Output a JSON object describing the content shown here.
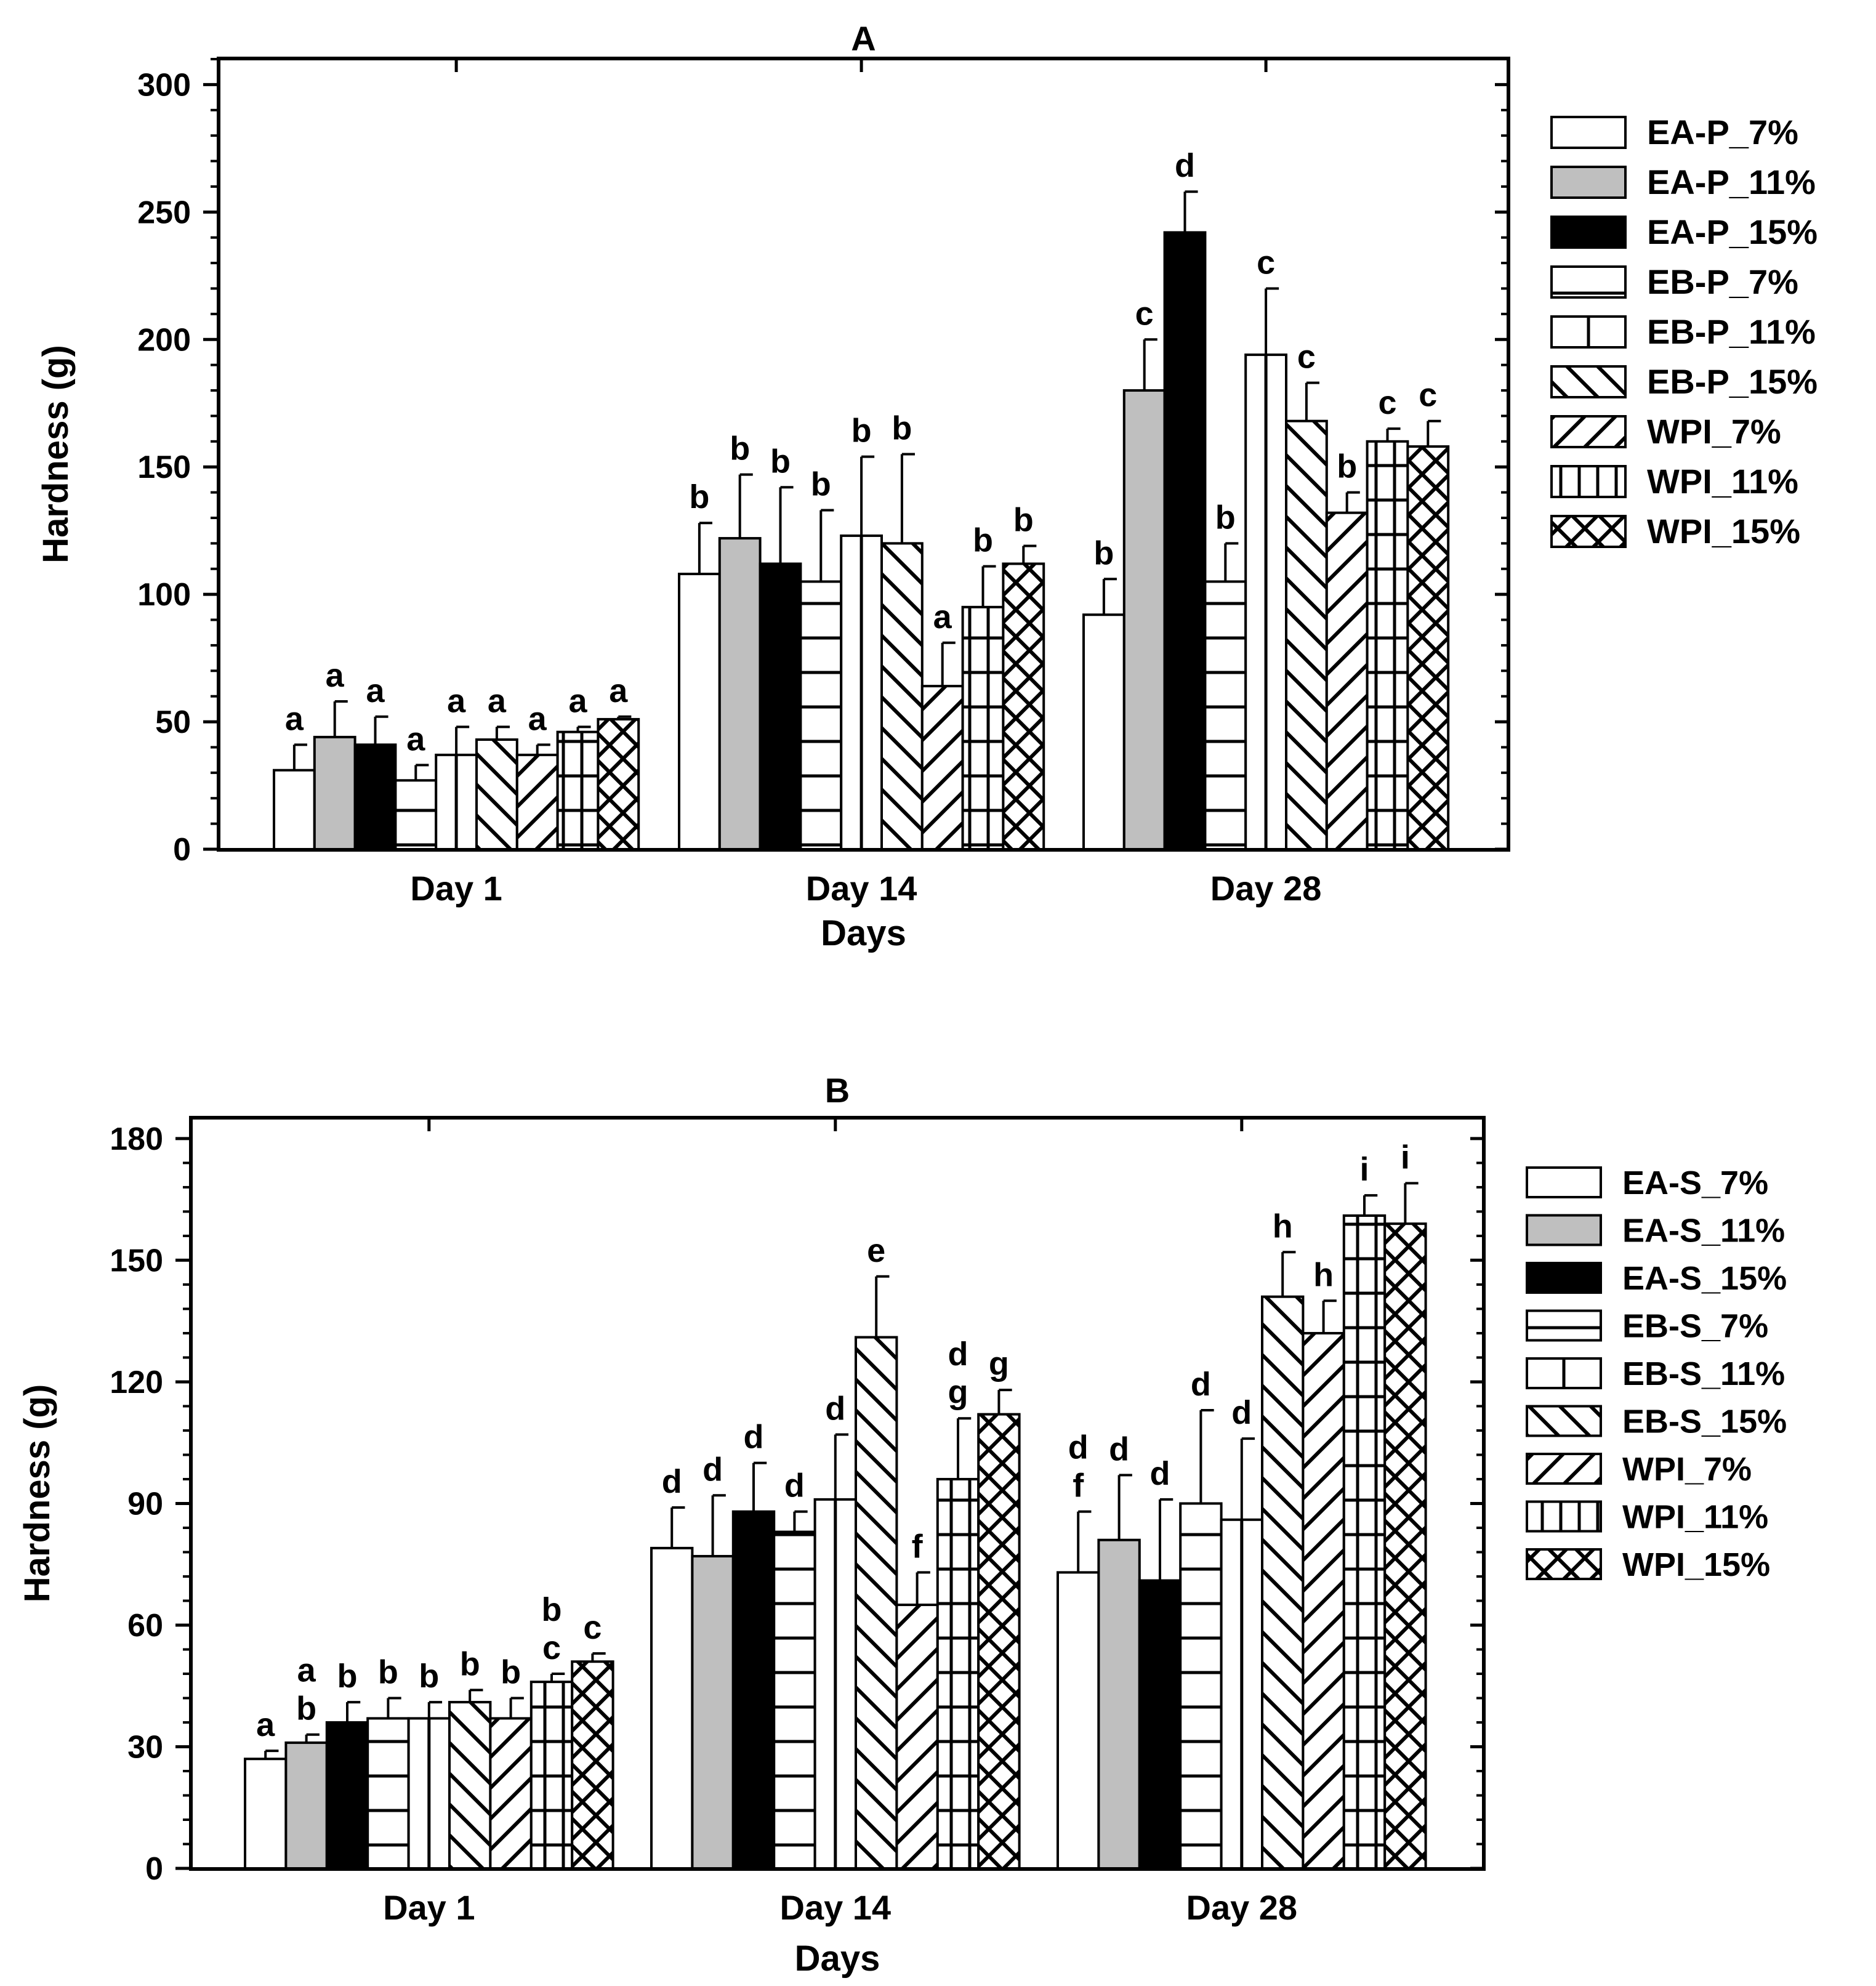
{
  "chart_data": [
    {
      "id": "A",
      "type": "bar",
      "title": "A",
      "xlabel": "Days",
      "ylabel": "Hardness (g)",
      "ylim": [
        0,
        310
      ],
      "yticks": [
        0,
        50,
        100,
        150,
        200,
        250,
        300
      ],
      "categories": [
        "Day 1",
        "Day 14",
        "Day 28"
      ],
      "legend_position": "right",
      "series": [
        {
          "name": "EA-P_7%",
          "pattern": "white",
          "values": [
            31,
            108,
            92
          ],
          "errors": [
            10,
            20,
            14
          ],
          "letters": [
            "a",
            "b",
            "b"
          ]
        },
        {
          "name": "EA-P_11%",
          "pattern": "gray",
          "values": [
            44,
            122,
            180
          ],
          "errors": [
            14,
            25,
            20
          ],
          "letters": [
            "a",
            "b",
            "c"
          ]
        },
        {
          "name": "EA-P_15%",
          "pattern": "black",
          "values": [
            41,
            112,
            242
          ],
          "errors": [
            11,
            30,
            16
          ],
          "letters": [
            "a",
            "b",
            "d"
          ]
        },
        {
          "name": "EB-P_7%",
          "pattern": "hlines",
          "values": [
            27,
            105,
            105
          ],
          "errors": [
            6,
            28,
            15
          ],
          "letters": [
            "a",
            "b",
            "b"
          ]
        },
        {
          "name": "EB-P_11%",
          "pattern": "vline",
          "values": [
            37,
            123,
            194
          ],
          "errors": [
            11,
            31,
            26
          ],
          "letters": [
            "a",
            "b",
            "c"
          ]
        },
        {
          "name": "EB-P_15%",
          "pattern": "backdiag",
          "values": [
            43,
            120,
            168
          ],
          "errors": [
            5,
            35,
            15
          ],
          "letters": [
            "a",
            "b",
            "c"
          ]
        },
        {
          "name": "WPI_7%",
          "pattern": "fwddiag",
          "values": [
            37,
            64,
            132
          ],
          "errors": [
            4,
            17,
            8
          ],
          "letters": [
            "a",
            "a",
            "b"
          ]
        },
        {
          "name": "WPI_11%",
          "pattern": "grid",
          "values": [
            46,
            95,
            160
          ],
          "errors": [
            2,
            16,
            5
          ],
          "letters": [
            "a",
            "b",
            "c"
          ]
        },
        {
          "name": "WPI_15%",
          "pattern": "cross",
          "values": [
            51,
            112,
            158
          ],
          "errors": [
            1,
            7,
            10
          ],
          "letters": [
            "a",
            "b",
            "c"
          ]
        }
      ]
    },
    {
      "id": "B",
      "type": "bar",
      "title": "B",
      "xlabel": "Days",
      "ylabel": "Hardness (g)",
      "ylim": [
        0,
        185
      ],
      "yticks": [
        0,
        30,
        60,
        90,
        120,
        150,
        180
      ],
      "categories": [
        "Day 1",
        "Day 14",
        "Day 28"
      ],
      "legend_position": "right",
      "series": [
        {
          "name": "EA-S_7%",
          "pattern": "white",
          "values": [
            27,
            79,
            73
          ],
          "errors": [
            2,
            10,
            15
          ],
          "letters": [
            "a",
            "d",
            "d\nf"
          ]
        },
        {
          "name": "EA-S_11%",
          "pattern": "gray",
          "values": [
            31,
            77,
            81
          ],
          "errors": [
            2,
            15,
            16
          ],
          "letters": [
            "a\nb",
            "d",
            "d"
          ]
        },
        {
          "name": "EA-S_15%",
          "pattern": "black",
          "values": [
            36,
            88,
            71
          ],
          "errors": [
            5,
            12,
            20
          ],
          "letters": [
            "b",
            "d",
            "d"
          ]
        },
        {
          "name": "EB-S_7%",
          "pattern": "hlines",
          "values": [
            37,
            83,
            90
          ],
          "errors": [
            5,
            5,
            23
          ],
          "letters": [
            "b",
            "d",
            "d"
          ]
        },
        {
          "name": "EB-S_11%",
          "pattern": "vline",
          "values": [
            37,
            91,
            86
          ],
          "errors": [
            4,
            16,
            20
          ],
          "letters": [
            "b",
            "d",
            "d"
          ]
        },
        {
          "name": "EB-S_15%",
          "pattern": "backdiag",
          "values": [
            41,
            131,
            141
          ],
          "errors": [
            3,
            15,
            11
          ],
          "letters": [
            "b",
            "e",
            "h"
          ]
        },
        {
          "name": "WPI_7%",
          "pattern": "fwddiag",
          "values": [
            37,
            65,
            132
          ],
          "errors": [
            5,
            8,
            8
          ],
          "letters": [
            "b",
            "f",
            "h"
          ]
        },
        {
          "name": "WPI_11%",
          "pattern": "grid",
          "values": [
            46,
            96,
            161
          ],
          "errors": [
            2,
            15,
            5
          ],
          "letters": [
            "b\nc",
            "d\ng",
            "i"
          ]
        },
        {
          "name": "WPI_15%",
          "pattern": "cross",
          "values": [
            51,
            112,
            159
          ],
          "errors": [
            2,
            6,
            10
          ],
          "letters": [
            "c",
            "g",
            "i"
          ]
        }
      ]
    }
  ]
}
